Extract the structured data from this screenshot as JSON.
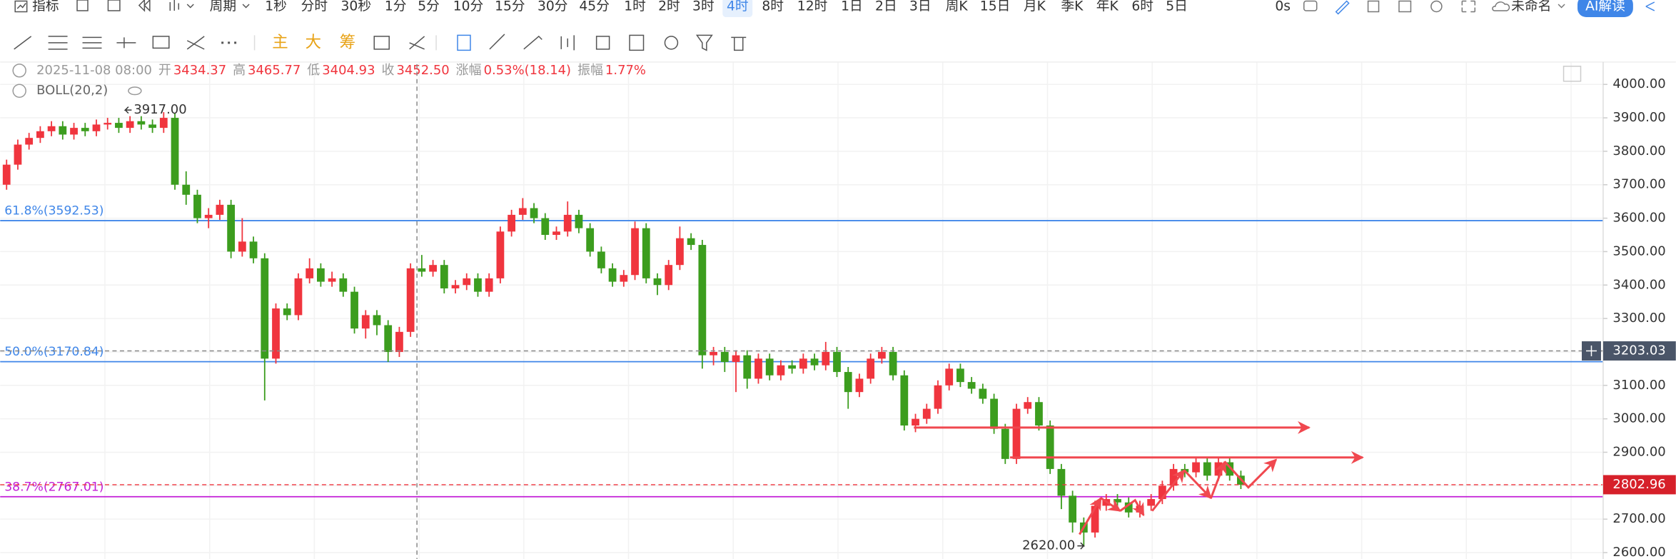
{
  "toolbar": {
    "indicator": "指标",
    "period": "周期",
    "periods": [
      "1秒",
      "分时",
      "30秒",
      "1分",
      "5分",
      "10分",
      "15分",
      "30分",
      "45分",
      "1时",
      "2时",
      "3时",
      "4时",
      "8时",
      "12时",
      "1日",
      "2日",
      "3日",
      "周K",
      "15日",
      "月K",
      "季K",
      "年K",
      "6时",
      "5日"
    ],
    "selected": "4时",
    "timer": "0s",
    "layout_name": "未命名",
    "ai_button": "AI解读",
    "overlays": [
      "主",
      "大",
      "筹"
    ]
  },
  "info": {
    "date": "2025-11-08 08:00",
    "fields": [
      [
        "开",
        "3434.37"
      ],
      [
        "高",
        "3465.77"
      ],
      [
        "低",
        "3404.93"
      ],
      [
        "收",
        "3452.50"
      ],
      [
        "涨幅",
        "0.53%(18.14)"
      ],
      [
        "振幅",
        "1.77%"
      ]
    ],
    "indicator": "BOLL(20,2)"
  },
  "chart_data": {
    "type": "candlestick",
    "up_color": "#f0353e",
    "down_color": "#3c9d1e",
    "grid": true,
    "ylim": [
      2584,
      4067
    ],
    "yticks": [
      {
        "value": 2600,
        "label": "2600.00"
      },
      {
        "value": 2700,
        "label": "2700.00"
      },
      {
        "value": 2800,
        "label": "2800.00"
      },
      {
        "value": 2900,
        "label": "2900.00"
      },
      {
        "value": 3000,
        "label": "3000.00"
      },
      {
        "value": 3100,
        "label": "3100.00"
      },
      {
        "value": 3200,
        "label": "3200.00"
      },
      {
        "value": 3300,
        "label": "3300.00"
      },
      {
        "value": 3400,
        "label": "3400.00"
      },
      {
        "value": 3500,
        "label": "3500.00"
      },
      {
        "value": 3600,
        "label": "3600.00"
      },
      {
        "value": 3700,
        "label": "3700.00"
      },
      {
        "value": 3800,
        "label": "3800.00"
      },
      {
        "value": 3900,
        "label": "3900.00"
      },
      {
        "value": 4000,
        "label": "4000.00"
      }
    ],
    "open": [
      3700,
      3760,
      3820,
      3840,
      3860,
      3875,
      3850,
      3870,
      3860,
      3880,
      3885,
      3870,
      3890,
      3880,
      3870,
      3900,
      3700,
      3670,
      3600,
      3610,
      3640,
      3500,
      3530,
      3480,
      3180,
      3330,
      3310,
      3420,
      3450,
      3410,
      3420,
      3380,
      3270,
      3310,
      3280,
      3200,
      3260,
      3450,
      3440,
      3460,
      3390,
      3400,
      3420,
      3380,
      3420,
      3560,
      3610,
      3630,
      3600,
      3550,
      3560,
      3610,
      3570,
      3500,
      3450,
      3410,
      3430,
      3570,
      3420,
      3400,
      3460,
      3540,
      3520,
      3190,
      3200,
      3170,
      3190,
      3120,
      3180,
      3130,
      3160,
      3150,
      3180,
      3160,
      3200,
      3140,
      3080,
      3120,
      3180,
      3200,
      3130,
      2980,
      3000,
      3030,
      3100,
      3150,
      3110,
      3090,
      3060,
      2970,
      2880,
      3030,
      3050,
      2980,
      2850,
      2770,
      2690,
      2660,
      2740,
      2760,
      2750,
      2720,
      2740,
      2760,
      2800,
      2850,
      2840,
      2870,
      2830,
      2870,
      2830
    ],
    "high": [
      3775,
      3835,
      3855,
      3875,
      3890,
      3890,
      3885,
      3885,
      3895,
      3900,
      3900,
      3905,
      3905,
      3895,
      3917,
      3915,
      3740,
      3685,
      3630,
      3655,
      3655,
      3600,
      3545,
      3495,
      3345,
      3345,
      3435,
      3480,
      3465,
      3440,
      3435,
      3395,
      3325,
      3325,
      3295,
      3275,
      3465,
      3490,
      3475,
      3475,
      3415,
      3435,
      3435,
      3435,
      3575,
      3625,
      3660,
      3645,
      3615,
      3575,
      3650,
      3625,
      3585,
      3515,
      3465,
      3445,
      3590,
      3585,
      3435,
      3475,
      3575,
      3555,
      3535,
      3215,
      3215,
      3205,
      3205,
      3195,
      3195,
      3175,
      3175,
      3195,
      3195,
      3230,
      3215,
      3155,
      3135,
      3195,
      3215,
      3215,
      3145,
      3015,
      3045,
      3115,
      3165,
      3165,
      3125,
      3105,
      3075,
      2985,
      3045,
      3065,
      3065,
      2995,
      2865,
      2785,
      2705,
      2755,
      2775,
      2775,
      2765,
      2755,
      2775,
      2815,
      2865,
      2865,
      2885,
      2885,
      2885,
      2885,
      2845
    ],
    "low": [
      3685,
      3745,
      3805,
      3825,
      3845,
      3835,
      3835,
      3845,
      3845,
      3865,
      3855,
      3855,
      3865,
      3855,
      3855,
      3685,
      3640,
      3585,
      3570,
      3595,
      3480,
      3485,
      3465,
      3055,
      3165,
      3295,
      3295,
      3405,
      3395,
      3395,
      3365,
      3255,
      3240,
      3250,
      3170,
      3185,
      3245,
      3425,
      3425,
      3375,
      3375,
      3385,
      3365,
      3365,
      3405,
      3545,
      3595,
      3585,
      3535,
      3535,
      3545,
      3555,
      3485,
      3435,
      3395,
      3395,
      3415,
      3405,
      3370,
      3385,
      3445,
      3505,
      3150,
      3160,
      3140,
      3080,
      3090,
      3105,
      3115,
      3115,
      3135,
      3135,
      3145,
      3145,
      3125,
      3030,
      3065,
      3105,
      3165,
      3115,
      2965,
      2960,
      2985,
      3015,
      3085,
      3095,
      3075,
      3045,
      2955,
      2865,
      2865,
      3015,
      2965,
      2835,
      2730,
      2660,
      2620,
      2645,
      2725,
      2735,
      2705,
      2705,
      2725,
      2745,
      2785,
      2825,
      2825,
      2815,
      2815,
      2815,
      2790
    ],
    "close": [
      3760,
      3820,
      3840,
      3860,
      3875,
      3850,
      3870,
      3860,
      3880,
      3885,
      3870,
      3890,
      3880,
      3870,
      3900,
      3700,
      3670,
      3600,
      3610,
      3640,
      3500,
      3530,
      3480,
      3180,
      3330,
      3310,
      3420,
      3450,
      3410,
      3420,
      3380,
      3270,
      3310,
      3280,
      3200,
      3260,
      3450,
      3440,
      3460,
      3390,
      3400,
      3420,
      3380,
      3420,
      3560,
      3610,
      3630,
      3600,
      3550,
      3560,
      3610,
      3570,
      3500,
      3450,
      3410,
      3430,
      3570,
      3420,
      3400,
      3460,
      3540,
      3520,
      3190,
      3200,
      3170,
      3190,
      3120,
      3180,
      3130,
      3160,
      3150,
      3180,
      3160,
      3200,
      3140,
      3080,
      3120,
      3180,
      3200,
      3130,
      2980,
      3000,
      3030,
      3100,
      3150,
      3110,
      3090,
      3060,
      2970,
      2880,
      3030,
      3050,
      2980,
      2850,
      2770,
      2690,
      2660,
      2740,
      2760,
      2750,
      2720,
      2740,
      2760,
      2800,
      2850,
      2840,
      2870,
      2830,
      2870,
      2830,
      2802.96
    ],
    "fib_levels": [
      {
        "label": "61.8%(3592.53)",
        "value": 3592.53,
        "color": "#3f86e8"
      },
      {
        "label": "50.0%(3170.84)",
        "value": 3170.84,
        "color": "#3f86e8"
      },
      {
        "label": "38.7%(2767.01)",
        "value": 2767.01,
        "color": "#c21ed6"
      }
    ],
    "crosshair_price": 3203.03,
    "last_price": 2802.96,
    "high_marker": {
      "value": 3917,
      "label": "3917.00"
    },
    "low_marker": {
      "value": 2620,
      "label": "2620.00"
    }
  }
}
